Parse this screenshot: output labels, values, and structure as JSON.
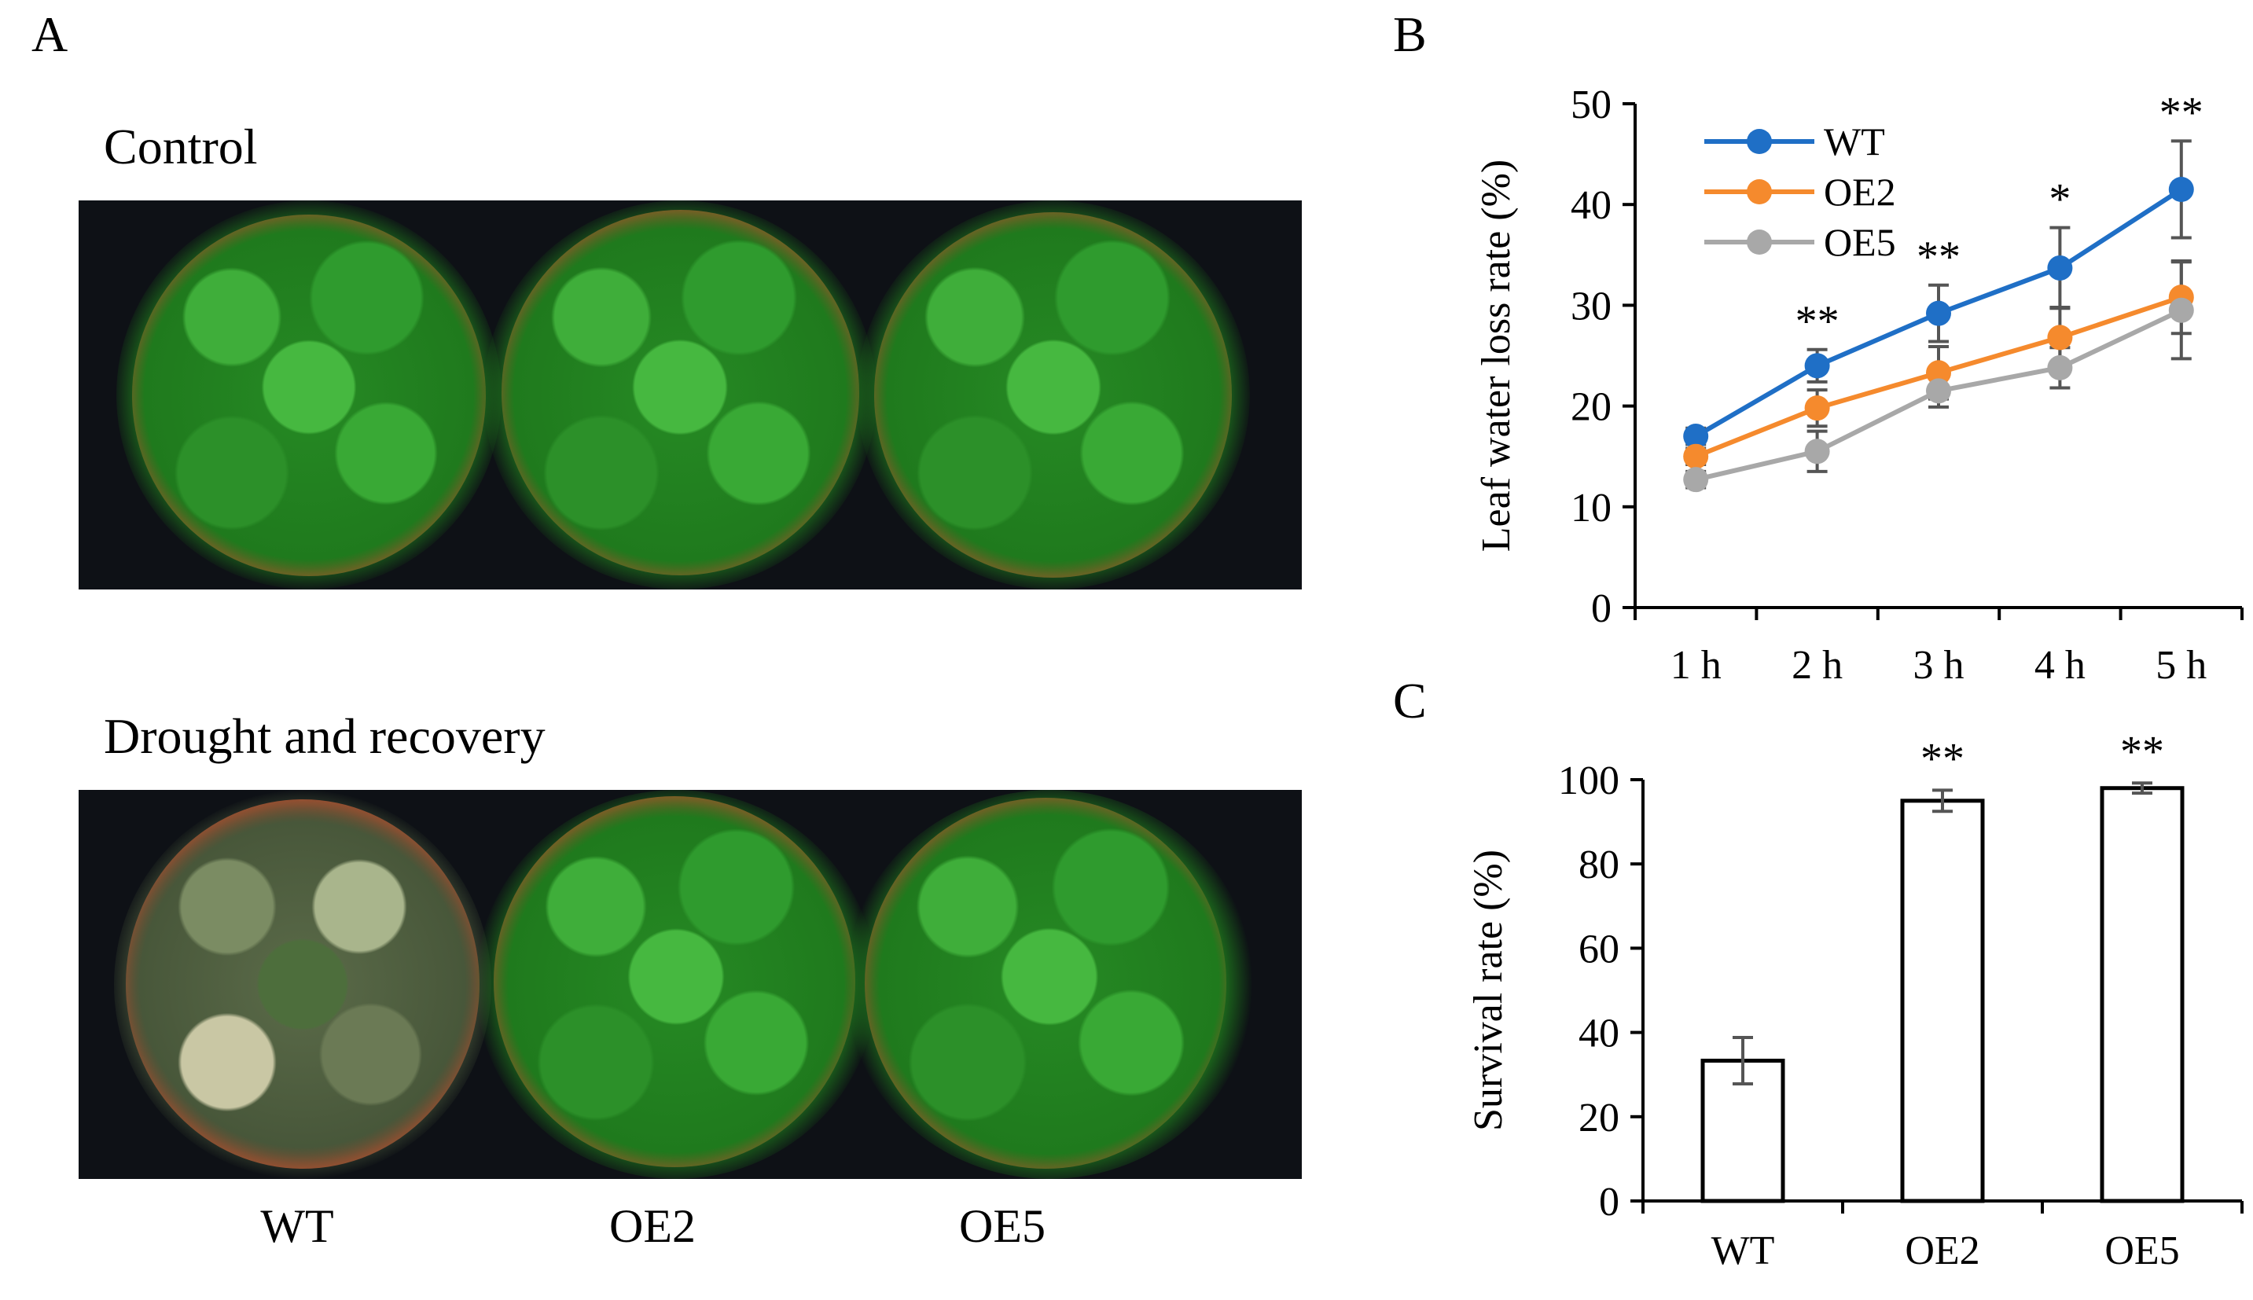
{
  "panels": {
    "a": "A",
    "b": "B",
    "c": "C"
  },
  "photo_panel": {
    "top_heading": "Control",
    "bottom_heading": "Drought and recovery",
    "genotype_labels": [
      "WT",
      "OE2",
      "OE5"
    ]
  },
  "chart_data": [
    {
      "type": "line",
      "panel": "B",
      "title": "",
      "ylabel": "Leaf water loss rate (%)",
      "xlabel": "",
      "categories": [
        "1 h",
        "2 h",
        "3 h",
        "4 h",
        "5 h"
      ],
      "ylim": [
        0,
        50
      ],
      "yticks": [
        0,
        10,
        20,
        30,
        40,
        50
      ],
      "legend": "top-left",
      "series": [
        {
          "name": "WT",
          "color": "#1f6fc6",
          "values": [
            17.0,
            24.0,
            29.2,
            33.7,
            41.5
          ],
          "errors": [
            0.8,
            1.6,
            2.8,
            4.0,
            4.8
          ]
        },
        {
          "name": "OE2",
          "color": "#f58a2d",
          "values": [
            15.0,
            19.8,
            23.3,
            26.8,
            30.8
          ],
          "errors": [
            0.8,
            1.8,
            2.6,
            3.0,
            3.6
          ]
        },
        {
          "name": "OE5",
          "color": "#a8a8a8",
          "values": [
            12.7,
            15.5,
            21.5,
            23.8,
            29.5
          ],
          "errors": [
            0.8,
            2.0,
            1.6,
            2.0,
            4.8
          ]
        }
      ],
      "annotations": [
        "",
        "**",
        "**",
        "*",
        "**"
      ]
    },
    {
      "type": "bar",
      "panel": "C",
      "title": "",
      "ylabel": "Survival rate (%)",
      "xlabel": "",
      "categories": [
        "WT",
        "OE2",
        "OE5"
      ],
      "values": [
        33.3,
        95.0,
        98.0
      ],
      "errors": [
        5.5,
        2.5,
        1.2
      ],
      "ylim": [
        0,
        100
      ],
      "yticks": [
        0,
        20,
        40,
        60,
        80,
        100
      ],
      "annotations": [
        "",
        "**",
        "**"
      ]
    }
  ]
}
